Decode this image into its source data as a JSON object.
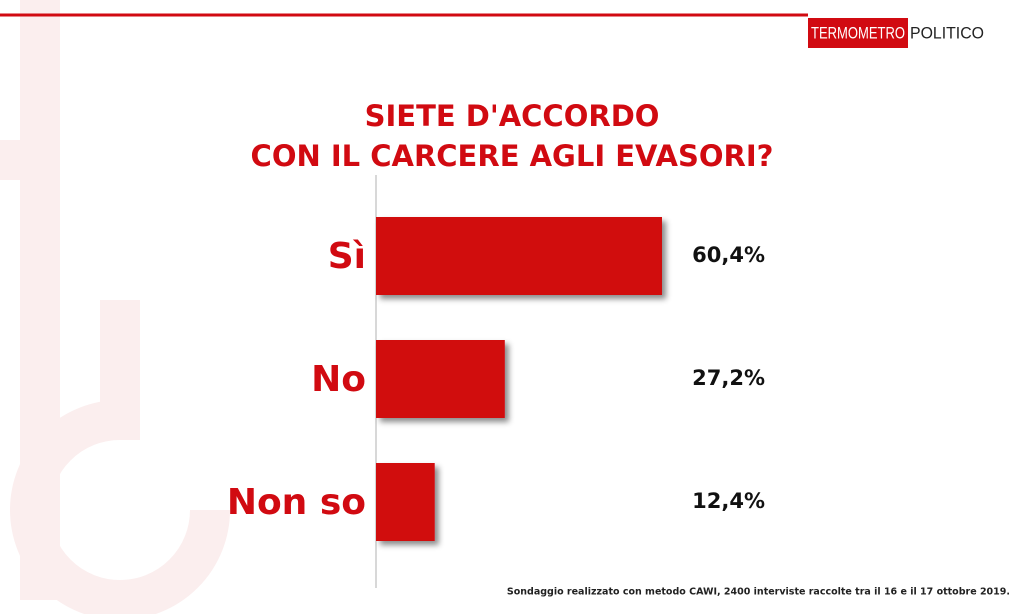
{
  "chart_data": {
    "type": "hbar",
    "title": [
      "SIETE D'ACCORDO",
      "CON IL CARCERE AGLI EVASORI?"
    ],
    "brand": [
      "TERMOMETRO",
      "POLITICO"
    ],
    "categories": [
      "Sì",
      "No",
      "Non so"
    ],
    "values": [
      60.4,
      27.2,
      12.4
    ],
    "value_labels": [
      "60,4%",
      "27,2%",
      "12,4%"
    ],
    "color": "#d10a11",
    "xlim": [
      0,
      100
    ],
    "note": "Sondaggio realizzato con metodo CAWI, 2400 interviste raccolte tra il 16 e il 17 ottobre 2019."
  }
}
